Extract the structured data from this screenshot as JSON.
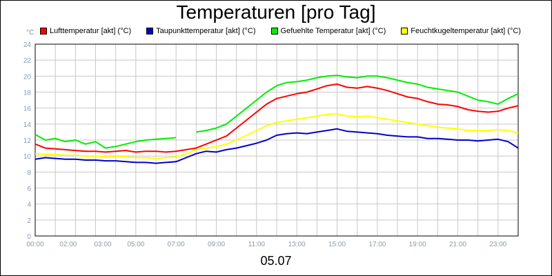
{
  "chart_data": {
    "type": "line",
    "title": "Temperaturen [pro Tag]",
    "y_unit_label": "°C",
    "date_label": "05.07",
    "ylim": [
      0,
      24
    ],
    "y_ticks": [
      0,
      2,
      4,
      6,
      8,
      10,
      12,
      14,
      16,
      18,
      20,
      22,
      24
    ],
    "xlim": [
      0,
      24
    ],
    "x_ticks": [
      {
        "x": 0,
        "label": "00:00"
      },
      {
        "x": 2,
        "label": "02:00"
      },
      {
        "x": 3,
        "label": "03:00"
      },
      {
        "x": 5,
        "label": "05:00"
      },
      {
        "x": 7,
        "label": "07:00"
      },
      {
        "x": 9,
        "label": "09:00"
      },
      {
        "x": 11,
        "label": "11:00"
      },
      {
        "x": 13,
        "label": "13:00"
      },
      {
        "x": 15,
        "label": "15:00"
      },
      {
        "x": 17,
        "label": "17:00"
      },
      {
        "x": 19,
        "label": "19:00"
      },
      {
        "x": 21,
        "label": "21:00"
      },
      {
        "x": 23,
        "label": "23:00"
      }
    ],
    "grid": true,
    "legend_position": "top",
    "series": [
      {
        "name": "Lufttemperatur [akt] (°C)",
        "color": "#ff0000",
        "x": [
          0,
          0.5,
          1,
          1.5,
          2,
          2.5,
          3,
          3.5,
          4,
          4.5,
          5,
          5.5,
          6,
          6.5,
          7,
          7.5,
          8,
          8.5,
          9,
          9.5,
          10,
          10.5,
          11,
          11.5,
          12,
          12.5,
          13,
          13.5,
          14,
          14.5,
          15,
          15.5,
          16,
          16.5,
          17,
          17.5,
          18,
          18.5,
          19,
          19.5,
          20,
          20.5,
          21,
          21.5,
          22,
          22.5,
          23,
          23.5,
          24
        ],
        "y": [
          11.5,
          11.0,
          10.9,
          10.8,
          10.7,
          10.6,
          10.6,
          10.5,
          10.6,
          10.7,
          10.5,
          10.6,
          10.6,
          10.5,
          10.6,
          10.8,
          11.0,
          11.5,
          12.0,
          12.5,
          13.5,
          14.5,
          15.5,
          16.5,
          17.2,
          17.5,
          17.8,
          18.0,
          18.4,
          18.8,
          19.0,
          18.6,
          18.5,
          18.7,
          18.5,
          18.2,
          17.8,
          17.4,
          17.2,
          16.8,
          16.5,
          16.4,
          16.2,
          15.8,
          15.6,
          15.5,
          15.6,
          16.0,
          16.3
        ]
      },
      {
        "name": "Taupunkttemperatur [akt] (°C)",
        "color": "#0000cc",
        "x": [
          0,
          0.5,
          1,
          1.5,
          2,
          2.5,
          3,
          3.5,
          4,
          4.5,
          5,
          5.5,
          6,
          6.5,
          7,
          7.5,
          8,
          8.5,
          9,
          9.5,
          10,
          10.5,
          11,
          11.5,
          12,
          12.5,
          13,
          13.5,
          14,
          14.5,
          15,
          15.5,
          16,
          16.5,
          17,
          17.5,
          18,
          18.5,
          19,
          19.5,
          20,
          20.5,
          21,
          21.5,
          22,
          22.5,
          23,
          23.5,
          24
        ],
        "y": [
          9.6,
          9.8,
          9.7,
          9.6,
          9.6,
          9.5,
          9.5,
          9.4,
          9.4,
          9.3,
          9.2,
          9.2,
          9.1,
          9.2,
          9.3,
          9.8,
          10.3,
          10.6,
          10.5,
          10.8,
          11.0,
          11.3,
          11.6,
          12.0,
          12.6,
          12.8,
          12.9,
          12.8,
          13.0,
          13.2,
          13.4,
          13.1,
          13.0,
          12.9,
          12.8,
          12.6,
          12.5,
          12.4,
          12.4,
          12.2,
          12.2,
          12.1,
          12.0,
          12.0,
          11.9,
          12.0,
          12.1,
          11.8,
          11.0
        ]
      },
      {
        "name": "Gefuehlte Temperatur [akt] (°C)",
        "color": "#00ee00",
        "x": [
          0,
          0.5,
          1,
          1.5,
          2,
          2.5,
          3,
          3.5,
          4,
          4.5,
          5,
          5.5,
          6,
          6.5,
          7,
          7.5,
          8,
          8.5,
          9,
          9.5,
          10,
          10.5,
          11,
          11.5,
          12,
          12.5,
          13,
          13.5,
          14,
          14.5,
          15,
          15.5,
          16,
          16.5,
          17,
          17.5,
          18,
          18.5,
          19,
          19.5,
          20,
          20.5,
          21,
          21.5,
          22,
          22.5,
          23,
          23.5,
          24
        ],
        "y": [
          12.7,
          12.0,
          12.2,
          11.8,
          12.0,
          11.5,
          11.8,
          11.0,
          11.2,
          11.5,
          11.8,
          12.0,
          12.1,
          12.2,
          12.3,
          null,
          13.0,
          13.2,
          13.5,
          14.0,
          15.0,
          16.0,
          17.0,
          18.0,
          18.8,
          19.2,
          19.3,
          19.5,
          19.8,
          20.0,
          20.1,
          19.9,
          19.8,
          20.0,
          20.0,
          19.8,
          19.5,
          19.2,
          19.0,
          18.6,
          18.4,
          18.2,
          18.0,
          17.5,
          17.0,
          16.8,
          16.5,
          17.2,
          17.8
        ]
      },
      {
        "name": "Feuchtkugeltemperatur [akt] (°C)",
        "color": "#ffff00",
        "x": [
          0,
          0.5,
          1,
          1.5,
          2,
          2.5,
          3,
          3.5,
          4,
          4.5,
          5,
          5.5,
          6,
          6.5,
          7,
          7.5,
          8,
          8.5,
          9,
          9.5,
          10,
          10.5,
          11,
          11.5,
          12,
          12.5,
          13,
          13.5,
          14,
          14.5,
          15,
          15.5,
          16,
          16.5,
          17,
          17.5,
          18,
          18.5,
          19,
          19.5,
          20,
          20.5,
          21,
          21.5,
          22,
          22.5,
          23,
          23.5,
          24
        ],
        "y": [
          10.3,
          10.2,
          10.2,
          10.1,
          10.1,
          10.0,
          10.0,
          9.9,
          9.9,
          9.9,
          9.8,
          9.8,
          9.7,
          9.8,
          9.9,
          10.3,
          10.8,
          11.0,
          11.2,
          11.5,
          12.0,
          12.6,
          13.2,
          13.8,
          14.2,
          14.4,
          14.6,
          14.8,
          15.0,
          15.2,
          15.3,
          15.0,
          14.9,
          15.0,
          14.8,
          14.6,
          14.4,
          14.2,
          14.0,
          13.8,
          13.6,
          13.5,
          13.4,
          13.2,
          13.2,
          13.2,
          13.3,
          13.2,
          12.9
        ]
      }
    ]
  }
}
